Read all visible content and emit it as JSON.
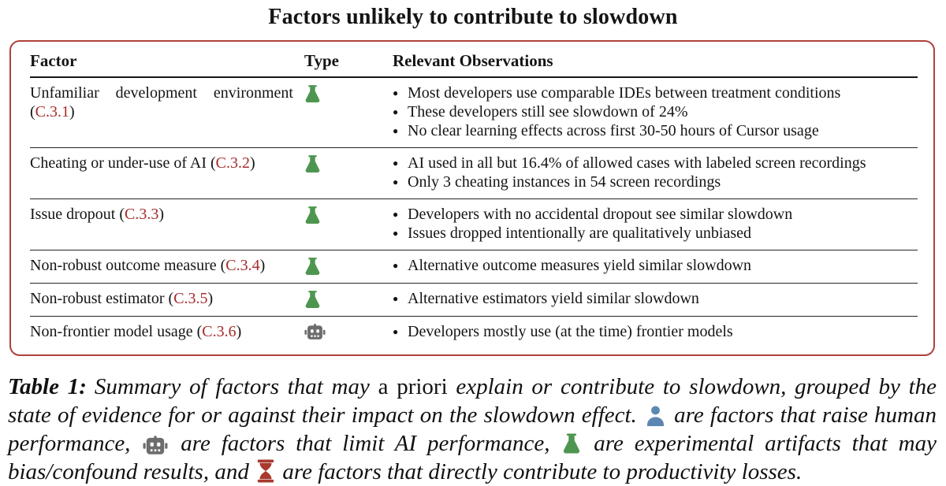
{
  "title": "Factors unlikely to contribute to slowdown",
  "colors": {
    "box_border": "#b0403c",
    "ref_link": "#a62c2b",
    "flask_green": "#4e9650",
    "robot_gray": "#6d6d6d",
    "person_blue": "#5d87b3",
    "hourglass_red": "#a83a2e"
  },
  "table": {
    "columns": [
      "Factor",
      "Type",
      "Relevant Observations"
    ],
    "rows": [
      {
        "factor": "Unfamiliar development environment",
        "ref": "C.3.1",
        "type_icon": "flask-icon",
        "observations": [
          "Most developers use comparable IDEs between treatment conditions",
          "These developers still see slowdown of 24%",
          "No clear learning effects across first 30-50 hours of Cursor usage"
        ]
      },
      {
        "factor": "Cheating or under-use of AI",
        "ref": "C.3.2",
        "type_icon": "flask-icon",
        "observations": [
          "AI used in all but 16.4% of allowed cases with labeled screen recordings",
          "Only 3 cheating instances in 54 screen recordings"
        ]
      },
      {
        "factor": "Issue dropout",
        "ref": "C.3.3",
        "type_icon": "flask-icon",
        "observations": [
          "Developers with no accidental dropout see similar slowdown",
          "Issues dropped intentionally are qualitatively unbiased"
        ]
      },
      {
        "factor": "Non-robust outcome measure",
        "ref": "C.3.4",
        "type_icon": "flask-icon",
        "observations": [
          "Alternative outcome measures yield similar slowdown"
        ]
      },
      {
        "factor": "Non-robust estimator",
        "ref": "C.3.5",
        "type_icon": "flask-icon",
        "observations": [
          "Alternative estimators yield similar slowdown"
        ]
      },
      {
        "factor": "Non-frontier model usage",
        "ref": "C.3.6",
        "type_icon": "robot-icon",
        "observations": [
          "Developers mostly use (at the time) frontier models"
        ]
      }
    ]
  },
  "caption": {
    "label": "Table 1:",
    "segments": [
      {
        "text": "Summary of factors that may ",
        "style": "italic"
      },
      {
        "text": "a priori",
        "style": "roman"
      },
      {
        "text": " explain or contribute to slowdown, grouped by the state of evidence for or against their impact on the slowdown effect. ",
        "style": "italic"
      },
      {
        "icon": "person-icon"
      },
      {
        "text": " are factors that raise human performance, ",
        "style": "italic"
      },
      {
        "icon": "robot-icon"
      },
      {
        "text": " are factors that limit AI performance, ",
        "style": "italic"
      },
      {
        "icon": "flask-icon"
      },
      {
        "text": " are experimental artifacts that may bias/confound results, and ",
        "style": "italic"
      },
      {
        "icon": "hourglass-icon"
      },
      {
        "text": " are factors that directly contribute to productivity losses.",
        "style": "italic"
      }
    ]
  }
}
